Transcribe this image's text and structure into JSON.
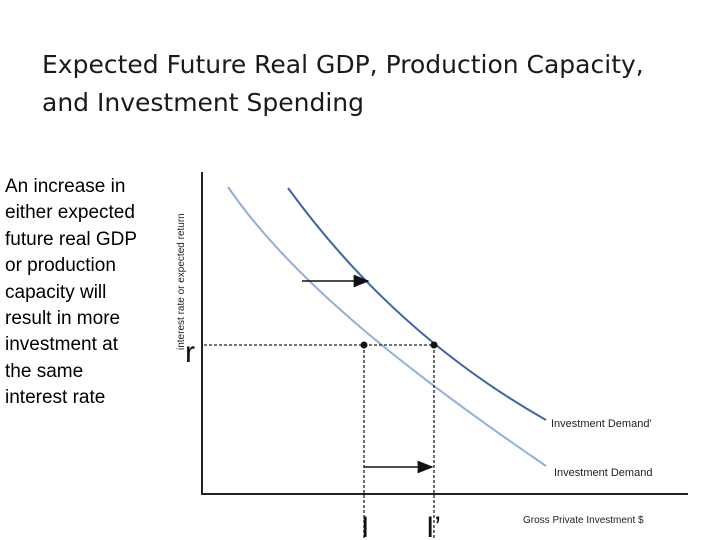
{
  "slide": {
    "title_line1": "Expected Future Real GDP, Production Capacity,",
    "title_line2": "and Investment Spending",
    "side_text": "An increase in either expected future real GDP or production capacity will result in more investment at the same interest rate"
  },
  "diagram": {
    "y_axis_label": "interest rate or expected return",
    "x_axis_label": "Gross Private Investment $",
    "curve_original_label": "Investment Demand",
    "curve_shifted_label": "Investment Demand'",
    "rate_label": "r",
    "investment_label": "I",
    "investment_shifted_label": "I’",
    "colors": {
      "original_curve": "#8fb0d8",
      "shifted_curve": "#3f63a8",
      "axes": "#222222"
    }
  }
}
